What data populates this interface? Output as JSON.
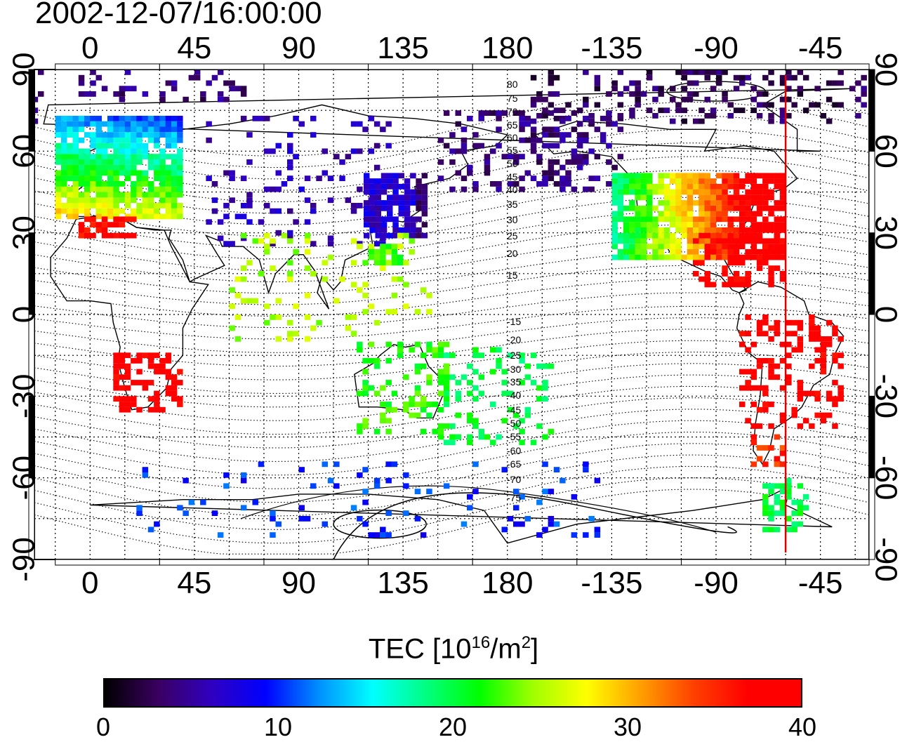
{
  "title": "2002-12-07/16:00:00",
  "map": {
    "top_axis_labels": [
      "0",
      "45",
      "90",
      "135",
      "180",
      "-135",
      "-90",
      "-45"
    ],
    "bottom_axis_labels": [
      "0",
      "45",
      "90",
      "135",
      "180",
      "-135",
      "-90",
      "-45"
    ],
    "lon_ticks": [
      0,
      45,
      90,
      135,
      180,
      225,
      270,
      315
    ],
    "left_axis_labels": [
      "90",
      "60",
      "30",
      "0",
      "-30",
      "-60",
      "-90"
    ],
    "right_axis_labels": [
      "90",
      "60",
      "30",
      "0",
      "-30",
      "-60",
      "-90"
    ],
    "lat_ticks": [
      90,
      60,
      30,
      0,
      -30,
      -60,
      -90
    ],
    "lon_range": [
      -24,
      336
    ],
    "lat_range": [
      -90,
      90
    ],
    "terminator_longitude": -60,
    "terminator_color": "#e00000",
    "grid": "dotted",
    "magnetic_latitude_labels_north": [
      "80",
      "75",
      "70",
      "65",
      "60",
      "55",
      "50",
      "45",
      "40",
      "35",
      "30",
      "25",
      "20",
      "15"
    ],
    "magnetic_latitude_labels_south": [
      "-15",
      "-20",
      "-25",
      "-30",
      "-35",
      "-40",
      "-45",
      "-50",
      "-55",
      "-60",
      "-65",
      "-70",
      "-75"
    ]
  },
  "colorbar": {
    "title_prefix": "TEC  [10",
    "title_exp": "16",
    "title_mid": "/m",
    "title_exp2": "2",
    "title_suffix": "]",
    "min": 0,
    "max": 40,
    "tick_labels": [
      "0",
      "10",
      "20",
      "30",
      "40"
    ],
    "colors": [
      "#000000",
      "#3a0060",
      "#3000c0",
      "#0000ff",
      "#0090ff",
      "#00ffff",
      "#00ff80",
      "#00ff00",
      "#a0ff00",
      "#ffff00",
      "#ffa000",
      "#ff4000",
      "#ff0000",
      "#ff0000"
    ]
  }
}
